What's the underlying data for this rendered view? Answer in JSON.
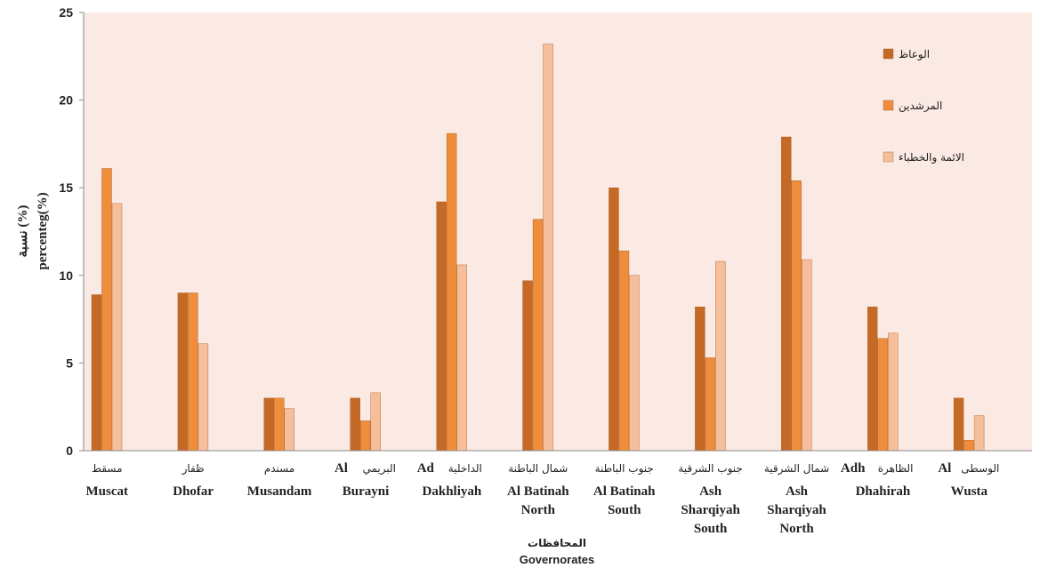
{
  "chart_data": {
    "type": "bar",
    "xlabel_ar": "المحافظات",
    "xlabel_en": "Governorates",
    "ylabel_ar": "نسبة (%)",
    "ylabel_en": "percenteg(%)",
    "ylim": [
      0,
      25
    ],
    "yticks": [
      "0",
      "5",
      "10",
      "15",
      "20",
      "25"
    ],
    "legend_position": "top-right",
    "grid": false,
    "categories": [
      {
        "ar": "مسقط",
        "en": [
          "Muscat"
        ]
      },
      {
        "ar": "ظفار",
        "en": [
          "Dhofar"
        ]
      },
      {
        "ar": "مسندم",
        "en": [
          "Musandam"
        ]
      },
      {
        "ar": "البريمي",
        "en_prefix": "Al",
        "en": [
          "Burayni"
        ]
      },
      {
        "ar": "الداخلية",
        "en_prefix": "Ad",
        "en": [
          "Dakhliyah"
        ]
      },
      {
        "ar": "شمال الباطنة",
        "en": [
          "Al Batinah",
          "North"
        ]
      },
      {
        "ar": "جنوب الباطنة",
        "en": [
          "Al Batinah",
          "South"
        ]
      },
      {
        "ar": "جنوب الشرقية",
        "en": [
          "Ash",
          "Sharqiyah",
          "South"
        ]
      },
      {
        "ar": "شمال الشرقية",
        "en": [
          "Ash",
          "Sharqiyah",
          "North"
        ]
      },
      {
        "ar": "الظاهرة",
        "en_prefix": "Adh",
        "en": [
          "Dhahirah"
        ]
      },
      {
        "ar": "الوسطى",
        "en_prefix": "Al",
        "en": [
          "Wusta"
        ]
      }
    ],
    "series": [
      {
        "name": "الوعاظ",
        "color": "#c56a26",
        "values": [
          8.9,
          9.0,
          3.0,
          3.0,
          14.2,
          9.7,
          15.0,
          8.2,
          17.9,
          8.2,
          3.0
        ]
      },
      {
        "name": "المرشدين",
        "color": "#ee8d3c",
        "values": [
          16.1,
          9.0,
          3.0,
          1.7,
          18.1,
          13.2,
          11.4,
          5.3,
          15.4,
          6.4,
          0.6
        ]
      },
      {
        "name": "الائمة والخطباء",
        "color": "#f5bf9c",
        "values": [
          14.1,
          6.1,
          2.4,
          3.3,
          10.6,
          23.2,
          10.0,
          10.8,
          10.9,
          6.7,
          2.0
        ]
      }
    ]
  }
}
